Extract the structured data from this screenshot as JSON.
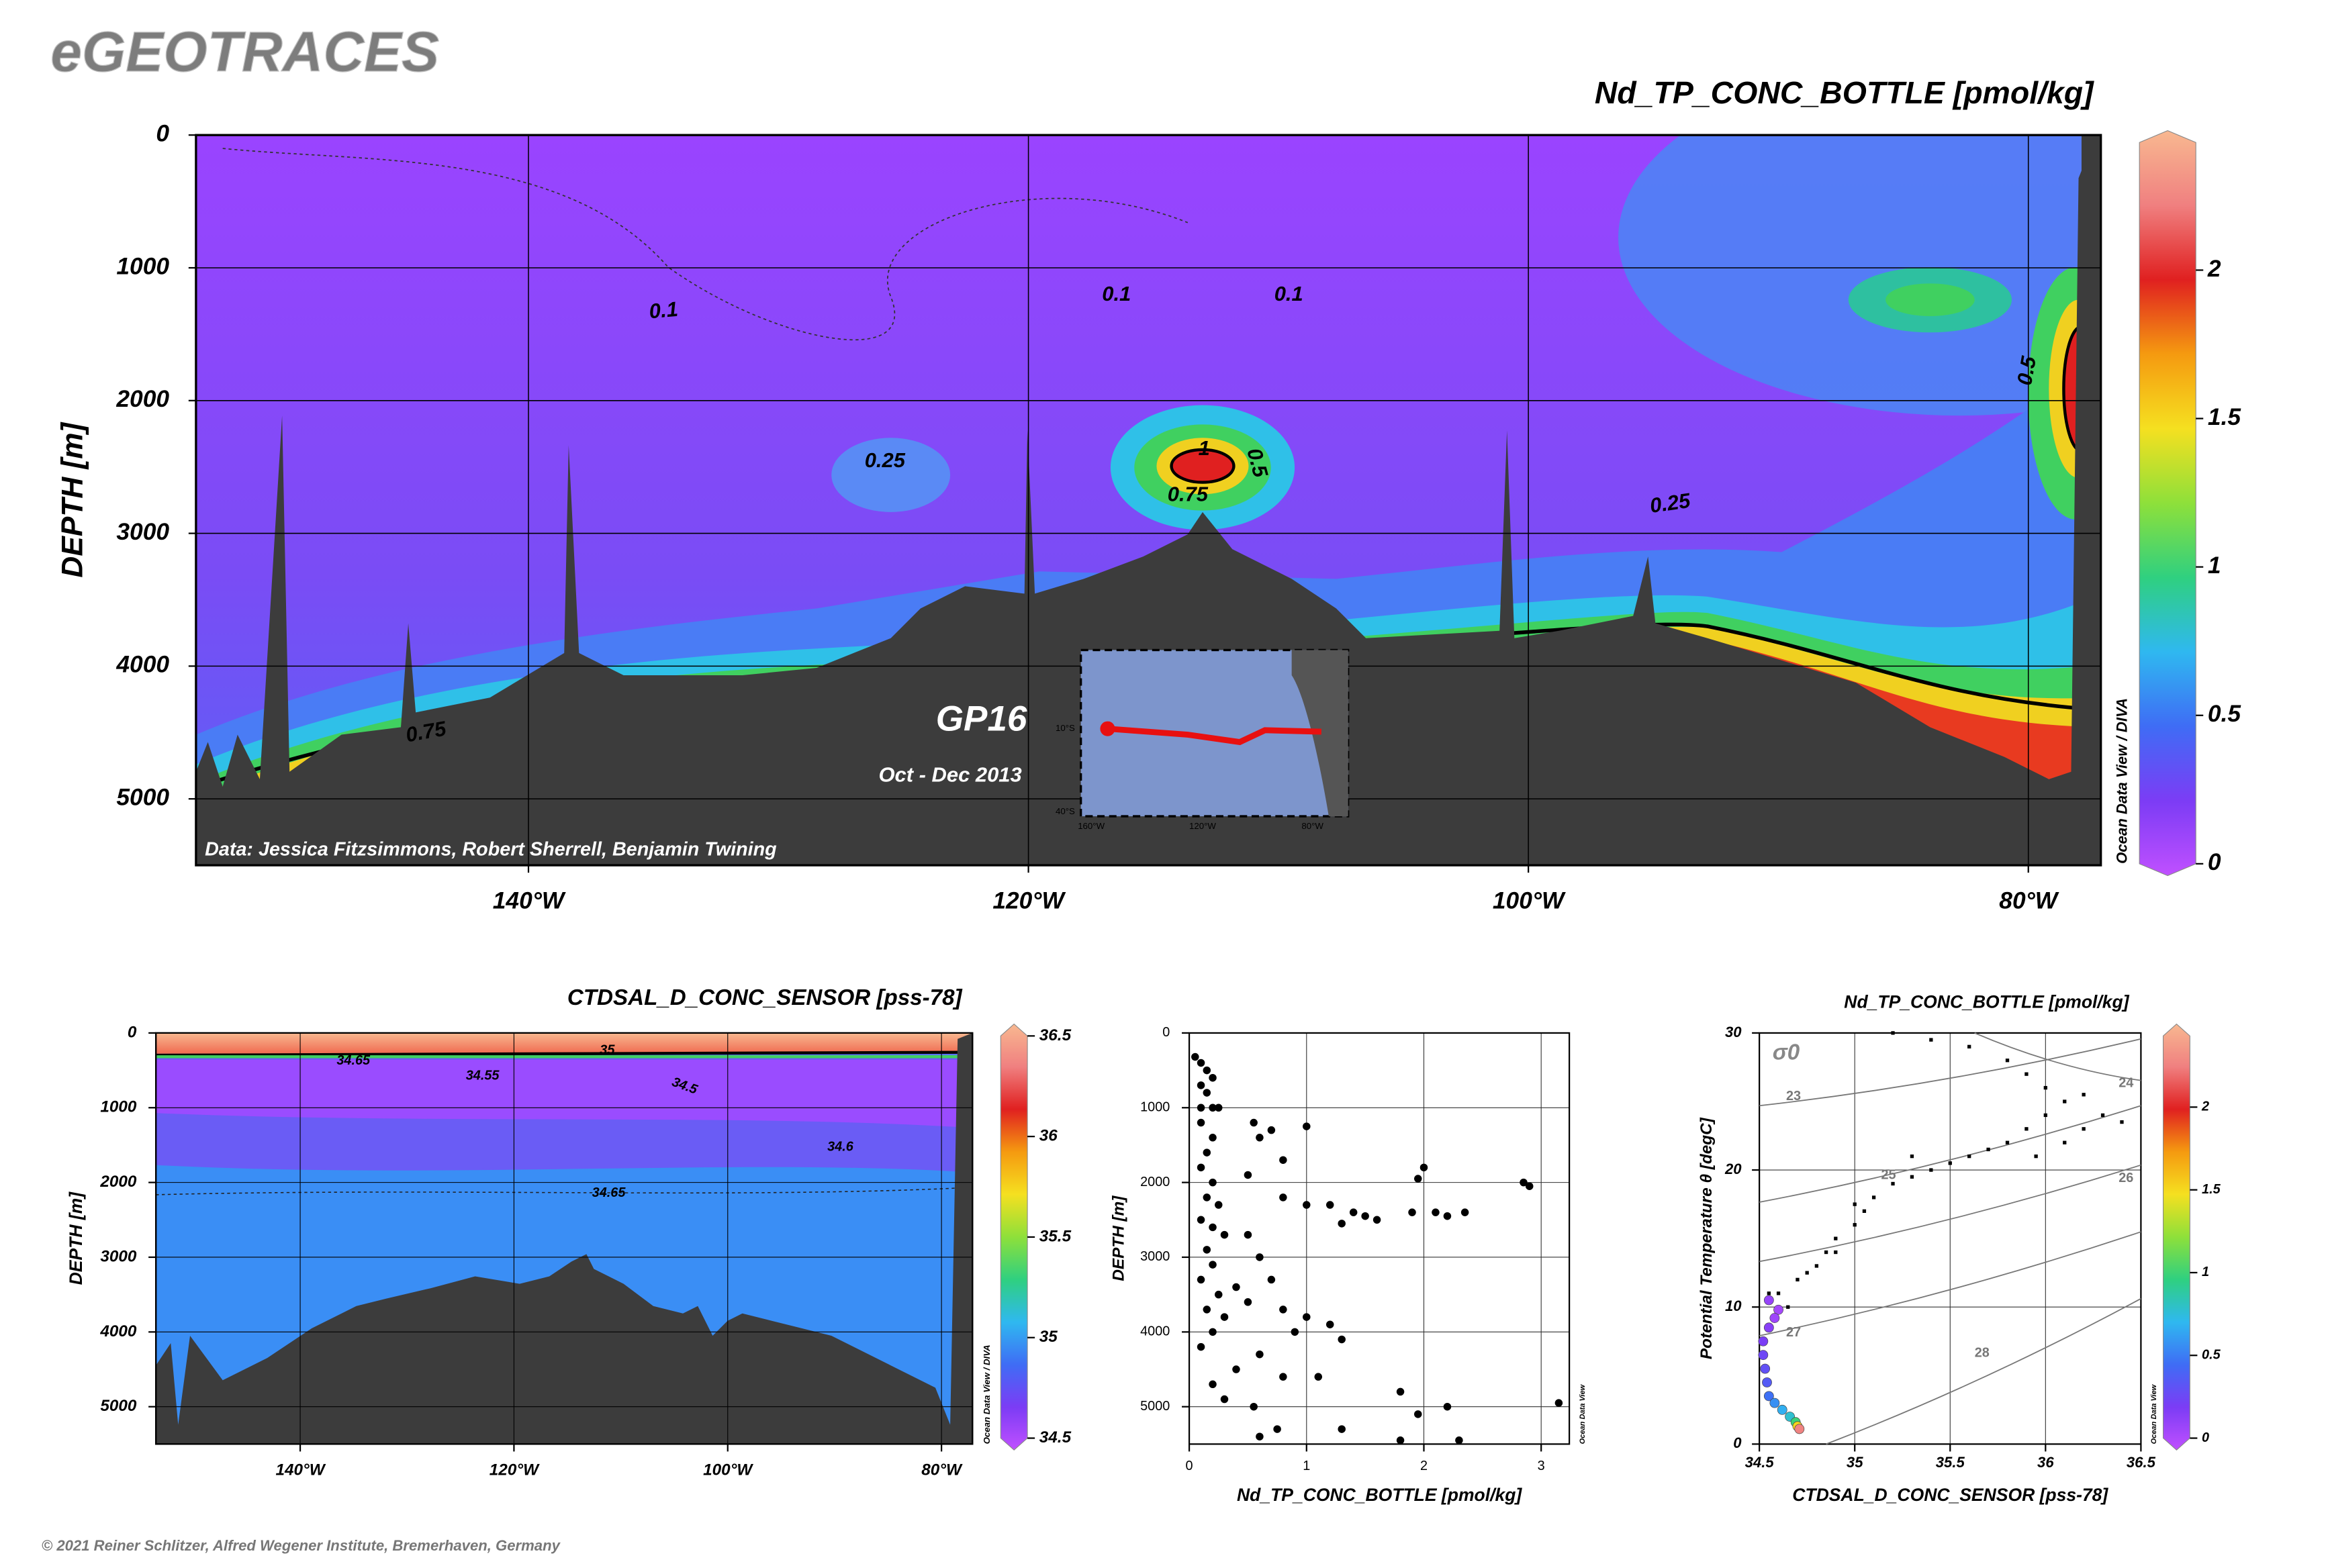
{
  "header": {
    "logo": "eGEOTRACES"
  },
  "footer": {
    "copyright": "© 2021 Reiner Schlitzer, Alfred Wegener Institute, Bremerhaven, Germany"
  },
  "chart_data": [
    {
      "type": "section",
      "title": "Nd_TP_CONC_BOTTLE [pmol/kg]",
      "y_label": "DEPTH [m]",
      "xlim": [
        -153.3,
        -77.1
      ],
      "xticks": [
        {
          "value": -140,
          "label": "140°W"
        },
        {
          "value": -120,
          "label": "120°W"
        },
        {
          "value": -100,
          "label": "100°W"
        },
        {
          "value": -80,
          "label": "80°W"
        }
      ],
      "ylim": [
        0,
        5500
      ],
      "yticks": [
        0,
        1000,
        2000,
        3000,
        4000,
        5000
      ],
      "y_inverted": true,
      "grid": true,
      "colorbar": {
        "lim": [
          0,
          2.43
        ],
        "ticks": [
          0,
          0.5,
          1,
          1.5,
          2
        ],
        "colors": [
          "#c050ff",
          "#7c3cf5",
          "#3f6cf5",
          "#2fb8f0",
          "#2fd080",
          "#8ee03a",
          "#f5e020",
          "#f59a10",
          "#e02020",
          "#f08080",
          "#f8b890"
        ]
      },
      "contour_labels": [
        0.1,
        0.1,
        0.1,
        0.25,
        0.25,
        0.5,
        0.5,
        0.75,
        0.75,
        1
      ],
      "cruise": "GP16",
      "period": "Oct - Dec 2013",
      "credit": "Data: Jessica Fitzsimmons, Robert Sherrell, Benjamin Twining",
      "watermark": "Ocean Data View / DIVA",
      "inset_map": {
        "lat_labels": [
          "10°S",
          "40°S"
        ],
        "lon_labels": [
          "160°W",
          "120°W",
          "80°W"
        ]
      }
    },
    {
      "type": "section",
      "title": "CTDSAL_D_CONC_SENSOR [pss-78]",
      "y_label": "DEPTH [m]",
      "xlim": [
        -153.5,
        -77.1
      ],
      "xticks": [
        {
          "value": -140,
          "label": "140°W"
        },
        {
          "value": -120,
          "label": "120°W"
        },
        {
          "value": -100,
          "label": "100°W"
        },
        {
          "value": -80,
          "label": "80°W"
        }
      ],
      "ylim": [
        0,
        5500
      ],
      "yticks": [
        0,
        1000,
        2000,
        3000,
        4000,
        5000
      ],
      "y_inverted": true,
      "grid": true,
      "colorbar": {
        "lim": [
          34.5,
          36.5
        ],
        "ticks": [
          34.5,
          35,
          35.5,
          36,
          36.5
        ],
        "colors": [
          "#c050ff",
          "#7c3cf5",
          "#3f6cf5",
          "#2fb8f0",
          "#2fd080",
          "#8ee03a",
          "#f5e020",
          "#f59a10",
          "#e02020",
          "#f08080",
          "#f8b890"
        ]
      },
      "contour_labels": [
        34.65,
        34.55,
        34.5,
        34.6,
        34.65,
        35
      ],
      "watermark": "Ocean Data View / DIVA"
    },
    {
      "type": "scatter",
      "x_label": "Nd_TP_CONC_BOTTLE [pmol/kg]",
      "y_label": "DEPTH [m]",
      "xlim": [
        0,
        3.24
      ],
      "xticks": [
        0,
        1,
        2,
        3
      ],
      "ylim": [
        0,
        5500
      ],
      "yticks": [
        0,
        1000,
        2000,
        3000,
        4000,
        5000
      ],
      "y_inverted": true,
      "grid": true,
      "color": "#000000",
      "watermark": "Ocean Data View",
      "x": [
        0.05,
        0.1,
        0.15,
        0.2,
        0.1,
        0.15,
        0.1,
        0.2,
        0.25,
        0.1,
        0.2,
        0.15,
        0.1,
        0.2,
        0.15,
        0.25,
        0.1,
        0.2,
        0.3,
        0.15,
        0.2,
        0.1,
        0.25,
        0.15,
        0.3,
        0.2,
        0.1,
        0.55,
        0.6,
        0.7,
        1.0,
        0.8,
        0.5,
        0.8,
        1.0,
        1.2,
        1.4,
        1.6,
        1.5,
        1.3,
        1.9,
        2.1,
        2.2,
        2.35,
        2.0,
        1.95,
        2.85,
        2.9,
        0.5,
        0.6,
        0.4,
        0.7,
        0.5,
        0.8,
        1.0,
        1.2,
        1.3,
        0.9,
        0.6,
        0.4,
        0.8,
        1.1,
        0.2,
        0.3,
        1.8,
        2.2,
        1.95,
        0.55,
        1.3,
        1.8,
        2.3,
        0.75,
        3.15,
        0.6
      ],
      "y": [
        320,
        400,
        500,
        600,
        700,
        800,
        1000,
        1000,
        1000,
        1200,
        1400,
        1600,
        1800,
        2000,
        2200,
        2300,
        2500,
        2600,
        2700,
        2900,
        3100,
        3300,
        3500,
        3700,
        3800,
        4000,
        4200,
        1200,
        1400,
        1300,
        1250,
        1700,
        1900,
        2200,
        2300,
        2300,
        2400,
        2500,
        2450,
        2550,
        2400,
        2400,
        2450,
        2400,
        1800,
        1950,
        2000,
        2050,
        2700,
        3000,
        3400,
        3300,
        3600,
        3700,
        3800,
        3900,
        4100,
        4000,
        4300,
        4500,
        4600,
        4600,
        4700,
        4900,
        4800,
        5000,
        5100,
        5000,
        5300,
        5450,
        5450,
        5300,
        4950,
        5400
      ]
    },
    {
      "type": "property",
      "title": "Nd_TP_CONC_BOTTLE [pmol/kg]",
      "x_label": "CTDSAL_D_CONC_SENSOR [pss-78]",
      "y_label": "Potential Temperature θ [degC]",
      "xlim": [
        34.5,
        36.5
      ],
      "xticks": [
        34.5,
        35,
        35.5,
        36,
        36.5
      ],
      "ylim": [
        0,
        30
      ],
      "yticks": [
        0,
        10,
        20,
        30
      ],
      "grid": true,
      "isopycnals": {
        "title": "σ0",
        "labels": [
          23,
          24,
          25,
          26,
          27,
          28
        ]
      },
      "colorbar": {
        "lim": [
          0,
          2.43
        ],
        "ticks": [
          0,
          0.5,
          1,
          1.5,
          2
        ],
        "colors": [
          "#c050ff",
          "#7c3cf5",
          "#3f6cf5",
          "#2fb8f0",
          "#2fd080",
          "#8ee03a",
          "#f5e020",
          "#f59a10",
          "#e02020",
          "#f08080",
          "#f8b890"
        ]
      },
      "watermark": "Ocean Data View",
      "points": {
        "color": "#000000",
        "x": [
          34.6,
          34.7,
          34.8,
          34.85,
          34.9,
          35.0,
          35.05,
          35.1,
          35.2,
          35.3,
          35.4,
          35.5,
          35.6,
          35.7,
          35.8,
          35.9,
          36.0,
          36.1,
          36.2,
          36.3,
          36.4,
          36.0,
          35.9,
          35.8,
          35.6,
          35.4,
          35.2,
          36.1,
          35.95,
          36.2,
          35.3,
          35.0,
          34.9,
          34.75,
          34.55,
          34.65
        ],
        "y": [
          11,
          12,
          13,
          14,
          15,
          16,
          17,
          18,
          19,
          19.5,
          20,
          20.5,
          21,
          21.5,
          22,
          23,
          24,
          25,
          25.5,
          24,
          23.5,
          26,
          27,
          28,
          29,
          29.5,
          30,
          22,
          21,
          23,
          21,
          17.5,
          14,
          12.5,
          11,
          10
        ]
      },
      "colored_points": {
        "x": [
          34.55,
          34.6,
          34.58,
          34.55,
          34.52,
          34.52,
          34.53,
          34.54,
          34.55,
          34.58,
          34.62,
          34.66,
          34.69,
          34.7,
          34.71
        ],
        "y": [
          10.5,
          9.8,
          9.2,
          8.5,
          7.5,
          6.5,
          5.5,
          4.5,
          3.5,
          3,
          2.5,
          2,
          1.6,
          1.3,
          1.1
        ],
        "values": [
          0.15,
          0.1,
          0.12,
          0.2,
          0.25,
          0.3,
          0.35,
          0.4,
          0.5,
          0.6,
          0.7,
          0.8,
          1.0,
          1.5,
          2.2
        ]
      }
    }
  ]
}
